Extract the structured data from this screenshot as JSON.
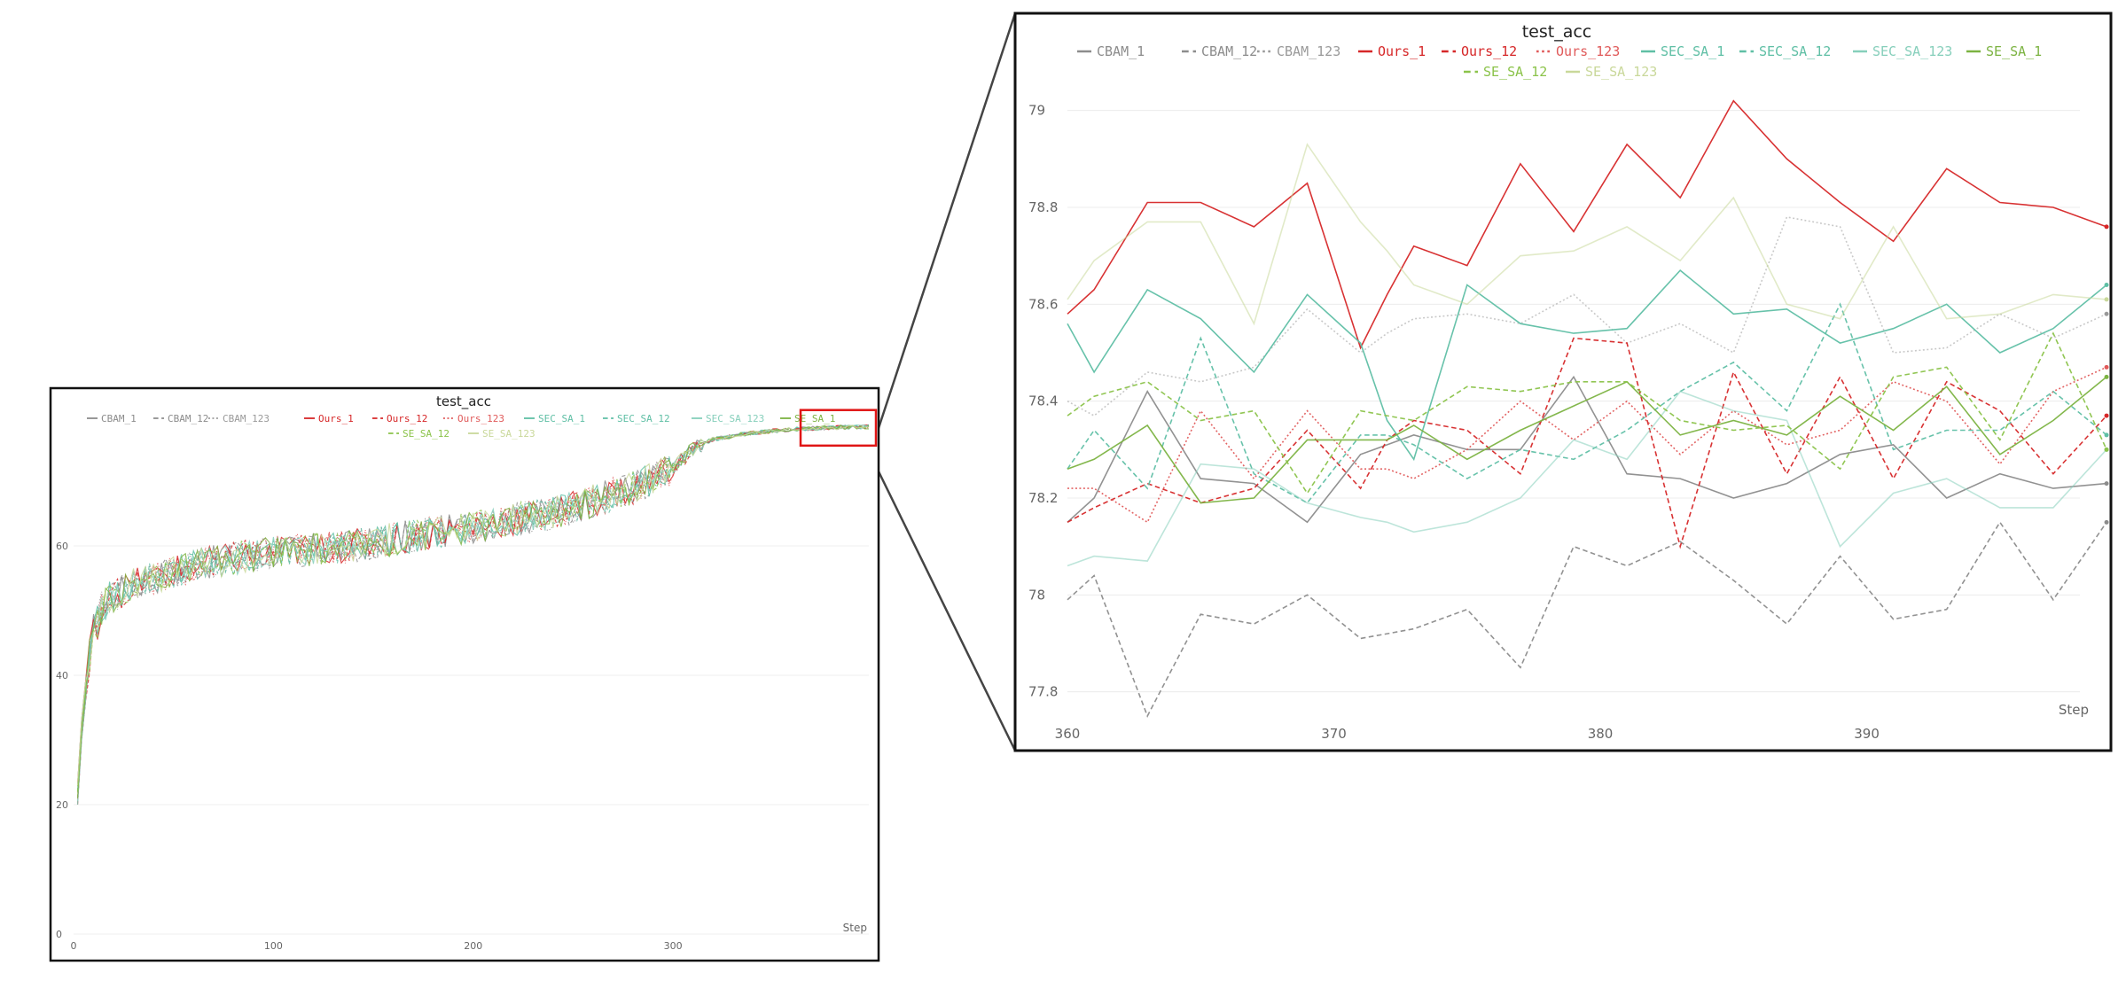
{
  "chart_data": [
    {
      "id": "overview",
      "type": "line",
      "title": "test_acc",
      "xlabel": "Step",
      "ylabel": "",
      "xlim": [
        0,
        398
      ],
      "ylim": [
        0,
        80
      ],
      "xticks": [
        0,
        100,
        200,
        300
      ],
      "yticks": [
        0,
        20,
        40,
        60
      ],
      "grid": true,
      "legend": "top",
      "series_names": [
        "CBAM_1",
        "CBAM_12",
        "CBAM_123",
        "Ours_1",
        "Ours_12",
        "Ours_123",
        "SEC_SA_1",
        "SEC_SA_12",
        "SEC_SA_123",
        "SE_SA_1",
        "SE_SA_12",
        "SE_SA_123"
      ],
      "overview_curve": {
        "x": [
          0,
          2,
          4,
          6,
          8,
          10,
          14,
          18,
          24,
          30,
          40,
          50,
          60,
          80,
          100,
          120,
          140,
          160,
          180,
          200,
          220,
          240,
          260,
          280,
          300,
          310,
          320,
          340,
          360,
          380,
          398
        ],
        "y": [
          10,
          22,
          32,
          38,
          43,
          47,
          50,
          52,
          53,
          54,
          55,
          56,
          57,
          58,
          59,
          59.5,
          60,
          61,
          62,
          63,
          64,
          65,
          67,
          69,
          72,
          75,
          76.5,
          77.5,
          78,
          78.3,
          78.4
        ]
      },
      "highlight_box": {
        "x": [
          358,
          398
        ],
        "y": [
          75.5,
          81
        ]
      }
    },
    {
      "id": "zoom",
      "type": "line",
      "title": "test_acc",
      "xlabel": "Step",
      "ylabel": "",
      "xlim": [
        360,
        398
      ],
      "ylim": [
        77.75,
        79.1
      ],
      "xticks": [
        360,
        370,
        380,
        390
      ],
      "yticks": [
        77.8,
        78,
        78.2,
        78.4,
        78.6,
        78.8,
        79
      ],
      "grid": true,
      "legend": "top",
      "x": [
        360,
        361,
        363,
        365,
        367,
        369,
        371,
        372,
        373,
        375,
        377,
        379,
        381,
        383,
        385,
        387,
        389,
        391,
        393,
        395,
        397,
        399
      ],
      "series": [
        {
          "name": "CBAM_1",
          "color": "#8c8c8c",
          "dash": "solid",
          "values": [
            78.15,
            78.2,
            78.42,
            78.24,
            78.23,
            78.15,
            78.29,
            78.31,
            78.33,
            78.3,
            78.3,
            78.45,
            78.25,
            78.24,
            78.2,
            78.23,
            78.29,
            78.31,
            78.2,
            78.25,
            78.22,
            78.23
          ]
        },
        {
          "name": "CBAM_12",
          "color": "#8c8c8c",
          "dash": "dashed",
          "values": [
            77.99,
            78.04,
            77.75,
            77.96,
            77.94,
            78.0,
            77.91,
            77.92,
            77.93,
            77.97,
            77.85,
            78.1,
            78.06,
            78.11,
            78.03,
            77.94,
            78.08,
            77.95,
            77.97,
            78.15,
            77.99,
            78.15
          ]
        },
        {
          "name": "CBAM_123",
          "color": "#9a9a9a",
          "dash": "dotted",
          "values": [
            78.4,
            78.37,
            78.46,
            78.44,
            78.47,
            78.59,
            78.5,
            78.54,
            78.57,
            78.58,
            78.56,
            78.62,
            78.52,
            78.56,
            78.5,
            78.78,
            78.76,
            78.5,
            78.51,
            78.58,
            78.53,
            78.58
          ]
        },
        {
          "name": "Ours_1",
          "color": "#d62728",
          "dash": "solid",
          "values": [
            78.58,
            78.63,
            78.81,
            78.81,
            78.76,
            78.85,
            78.51,
            78.62,
            78.72,
            78.68,
            78.89,
            78.75,
            78.93,
            78.82,
            79.02,
            78.9,
            78.81,
            78.73,
            78.88,
            78.81,
            78.8,
            78.76
          ]
        },
        {
          "name": "Ours_12",
          "color": "#d62728",
          "dash": "dashed",
          "values": [
            78.15,
            78.18,
            78.23,
            78.19,
            78.22,
            78.34,
            78.22,
            78.32,
            78.36,
            78.34,
            78.25,
            78.53,
            78.52,
            78.1,
            78.46,
            78.25,
            78.45,
            78.24,
            78.44,
            78.38,
            78.25,
            78.37
          ]
        },
        {
          "name": "Ours_123",
          "color": "#e05a5a",
          "dash": "dotted",
          "values": [
            78.22,
            78.22,
            78.15,
            78.38,
            78.24,
            78.38,
            78.26,
            78.26,
            78.24,
            78.3,
            78.4,
            78.32,
            78.4,
            78.29,
            78.38,
            78.31,
            78.34,
            78.44,
            78.4,
            78.27,
            78.42,
            78.47
          ]
        },
        {
          "name": "SEC_SA_1",
          "color": "#5fbfa5",
          "dash": "solid",
          "values": [
            78.56,
            78.46,
            78.63,
            78.57,
            78.46,
            78.62,
            78.52,
            78.36,
            78.28,
            78.64,
            78.56,
            78.54,
            78.55,
            78.67,
            78.58,
            78.59,
            78.52,
            78.55,
            78.6,
            78.5,
            78.55,
            78.64
          ]
        },
        {
          "name": "SEC_SA_12",
          "color": "#5fbfa5",
          "dash": "dashed",
          "values": [
            78.26,
            78.34,
            78.22,
            78.53,
            78.25,
            78.19,
            78.33,
            78.33,
            78.31,
            78.24,
            78.3,
            78.28,
            78.34,
            78.42,
            78.48,
            78.38,
            78.6,
            78.3,
            78.34,
            78.34,
            78.42,
            78.33
          ]
        },
        {
          "name": "SEC_SA_123",
          "color": "#86cfbb",
          "dash": "solid",
          "values": [
            78.06,
            78.08,
            78.07,
            78.27,
            78.26,
            78.19,
            78.16,
            78.15,
            78.13,
            78.15,
            78.2,
            78.32,
            78.28,
            78.42,
            78.38,
            78.36,
            78.1,
            78.21,
            78.24,
            78.18,
            78.18,
            78.3
          ]
        },
        {
          "name": "SE_SA_1",
          "color": "#7cb342",
          "dash": "solid",
          "values": [
            78.26,
            78.28,
            78.35,
            78.19,
            78.2,
            78.32,
            78.32,
            78.32,
            78.35,
            78.28,
            78.34,
            78.39,
            78.44,
            78.33,
            78.36,
            78.33,
            78.41,
            78.34,
            78.43,
            78.29,
            78.36,
            78.45
          ]
        },
        {
          "name": "SE_SA_12",
          "color": "#8bc34a",
          "dash": "dashed",
          "values": [
            78.37,
            78.41,
            78.44,
            78.36,
            78.38,
            78.21,
            78.38,
            78.37,
            78.36,
            78.43,
            78.42,
            78.44,
            78.44,
            78.36,
            78.34,
            78.35,
            78.26,
            78.45,
            78.47,
            78.32,
            78.54,
            78.3
          ]
        },
        {
          "name": "SE_SA_123",
          "color": "#c9d89a",
          "dash": "solid",
          "values": [
            78.61,
            78.69,
            78.77,
            78.77,
            78.56,
            78.93,
            78.77,
            78.71,
            78.64,
            78.6,
            78.7,
            78.71,
            78.76,
            78.69,
            78.82,
            78.6,
            78.57,
            78.76,
            78.57,
            78.58,
            78.62,
            78.61
          ]
        }
      ]
    }
  ]
}
